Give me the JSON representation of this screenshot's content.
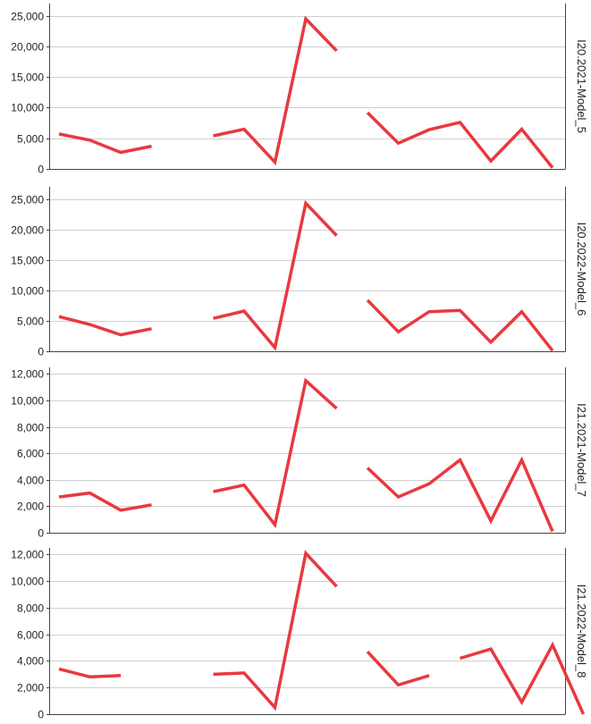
{
  "chart_data": [
    {
      "type": "line",
      "panel_label": "I20.2021-Model_5",
      "ylim": [
        0,
        27000
      ],
      "yticks": [
        0,
        5000,
        10000,
        15000,
        20000,
        25000
      ],
      "grid": true,
      "series": [
        {
          "color": "#e8393f",
          "segments": [
            [
              [
                1,
                5700
              ],
              [
                2,
                4700
              ],
              [
                3,
                2700
              ],
              [
                4,
                3700
              ]
            ],
            [
              [
                6,
                5400
              ],
              [
                7,
                6500
              ],
              [
                8,
                1100
              ],
              [
                9,
                24500
              ],
              [
                10,
                19300
              ]
            ],
            [
              [
                11,
                9200
              ],
              [
                12,
                4200
              ],
              [
                13,
                6400
              ],
              [
                14,
                7600
              ],
              [
                15,
                1300
              ],
              [
                16,
                6500
              ],
              [
                17,
                200
              ]
            ]
          ]
        }
      ]
    },
    {
      "type": "line",
      "panel_label": "I20.2022-Model_6",
      "ylim": [
        0,
        27000
      ],
      "yticks": [
        0,
        5000,
        10000,
        15000,
        20000,
        25000
      ],
      "grid": true,
      "series": [
        {
          "color": "#e8393f",
          "segments": [
            [
              [
                1,
                5700
              ],
              [
                2,
                4400
              ],
              [
                3,
                2700
              ],
              [
                4,
                3700
              ]
            ],
            [
              [
                6,
                5400
              ],
              [
                7,
                6600
              ],
              [
                8,
                600
              ],
              [
                9,
                24300
              ],
              [
                10,
                19000
              ]
            ],
            [
              [
                11,
                8400
              ],
              [
                12,
                3200
              ],
              [
                13,
                6500
              ],
              [
                14,
                6700
              ],
              [
                15,
                1500
              ],
              [
                16,
                6500
              ],
              [
                17,
                100
              ]
            ]
          ]
        }
      ]
    },
    {
      "type": "line",
      "panel_label": "I21.2021-Model_7",
      "ylim": [
        0,
        12500
      ],
      "yticks": [
        0,
        2000,
        4000,
        6000,
        8000,
        10000,
        12000
      ],
      "grid": true,
      "series": [
        {
          "color": "#e8393f",
          "segments": [
            [
              [
                1,
                2700
              ],
              [
                2,
                3000
              ],
              [
                3,
                1700
              ],
              [
                4,
                2100
              ]
            ],
            [
              [
                6,
                3100
              ],
              [
                7,
                3600
              ],
              [
                8,
                600
              ],
              [
                9,
                11500
              ],
              [
                10,
                9400
              ]
            ],
            [
              [
                11,
                4900
              ],
              [
                12,
                2700
              ],
              [
                13,
                3700
              ],
              [
                14,
                5500
              ],
              [
                15,
                900
              ],
              [
                16,
                5500
              ],
              [
                17,
                100
              ]
            ]
          ]
        }
      ]
    },
    {
      "type": "line",
      "panel_label": "I21.2022-Model_8",
      "ylim": [
        0,
        12500
      ],
      "yticks": [
        0,
        2000,
        4000,
        6000,
        8000,
        10000,
        12000
      ],
      "grid": true,
      "series": [
        {
          "color": "#e8393f",
          "segments": [
            [
              [
                1,
                3400
              ],
              [
                2,
                2800
              ],
              [
                3,
                2900
              ]
            ],
            [
              [
                6,
                3000
              ],
              [
                7,
                3100
              ],
              [
                8,
                500
              ],
              [
                9,
                12100
              ],
              [
                10,
                9600
              ]
            ],
            [
              [
                11,
                4700
              ],
              [
                12,
                2200
              ],
              [
                13,
                2900
              ]
            ],
            [
              [
                14,
                4200
              ],
              [
                15,
                4900
              ],
              [
                16,
                900
              ],
              [
                17,
                5200
              ],
              [
                18,
                0
              ]
            ]
          ]
        }
      ]
    }
  ]
}
